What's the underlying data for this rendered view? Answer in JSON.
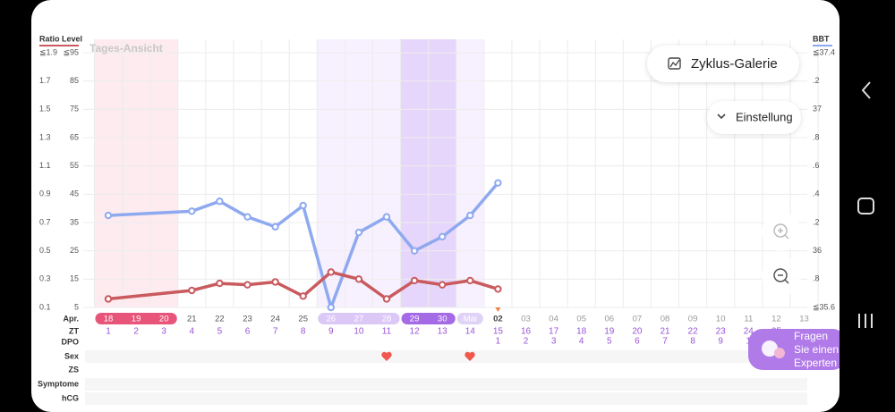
{
  "header": {
    "view_label": "Tages-Ansicht",
    "gallery_button": "Zyklus-Galerie",
    "settings_button": "Einstellung"
  },
  "chart_data": {
    "type": "line",
    "month_label": "Apr.",
    "categories": [
      "18",
      "19",
      "20",
      "21",
      "22",
      "23",
      "24",
      "25",
      "26",
      "27",
      "28",
      "29",
      "30",
      "Mai",
      "02",
      "03",
      "04",
      "05",
      "06",
      "07",
      "08",
      "09",
      "10",
      "11",
      "12",
      "13"
    ],
    "row_labels": [
      "ZT",
      "DPO",
      "Sex",
      "ZS",
      "Symptome",
      "hCG"
    ],
    "zt": [
      1,
      2,
      3,
      4,
      5,
      6,
      7,
      8,
      9,
      10,
      11,
      12,
      13,
      14,
      15,
      16,
      17,
      18,
      19,
      20,
      21,
      22,
      23,
      24,
      25,
      null
    ],
    "dpo": [
      null,
      null,
      null,
      null,
      null,
      null,
      null,
      null,
      null,
      null,
      null,
      null,
      null,
      null,
      1,
      2,
      3,
      4,
      5,
      6,
      7,
      8,
      9,
      1,
      null,
      null
    ],
    "ylim": [
      0.1,
      1.9
    ],
    "yticks": [
      {
        "value": 1.9,
        "label": "≦1.9"
      },
      1.7,
      1.5,
      1.3,
      1.1,
      0.9,
      0.7,
      0.5,
      0.3,
      0.1
    ],
    "y3lim": [
      5,
      95
    ],
    "y3ticks": [
      {
        "value": 95,
        "label": "≦95"
      },
      85,
      75,
      65,
      55,
      45,
      35,
      25,
      15,
      5
    ],
    "y2lim": [
      35.6,
      37.4
    ],
    "y2ticks": [
      {
        "value": 37.4,
        "label": "≦37.4"
      },
      {
        "value": 37.2,
        "label": ".2"
      },
      37,
      {
        "value": 36.8,
        "label": ".8"
      },
      {
        "value": 36.6,
        "label": ".6"
      },
      {
        "value": 36.4,
        "label": ".4"
      },
      {
        "value": 36.2,
        "label": ".2"
      },
      36,
      {
        "value": 35.8,
        "label": ".8"
      },
      {
        "value": 35.6,
        "label": "≦35.6"
      }
    ],
    "grid": true,
    "series": [
      {
        "name": "BBT",
        "color": "#8ea9f0",
        "axis": "y2",
        "x": [
          "18",
          "21",
          "22",
          "23",
          "24",
          "25",
          "26",
          "27",
          "28",
          "29",
          "30",
          "Mai",
          "02"
        ],
        "values": [
          36.25,
          36.28,
          36.35,
          36.24,
          36.17,
          36.32,
          35.6,
          36.13,
          36.24,
          36.0,
          36.1,
          36.25,
          36.48
        ]
      },
      {
        "name": "Ratio Level",
        "color": "#c95a5e",
        "x": [
          "18",
          "21",
          "22",
          "23",
          "24",
          "25",
          "26",
          "27",
          "28",
          "29",
          "30",
          "Mai",
          "02"
        ],
        "values": [
          0.16,
          0.22,
          0.27,
          0.26,
          0.28,
          0.18,
          0.35,
          0.3,
          0.16,
          0.29,
          0.26,
          0.29,
          0.23
        ]
      }
    ]
  },
  "fab": {
    "lines": [
      "Fragen",
      "Sie einen",
      "Experten"
    ]
  }
}
